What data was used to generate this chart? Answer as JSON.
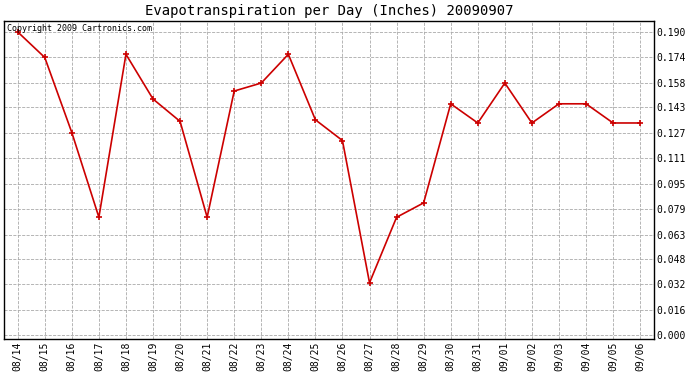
{
  "title": "Evapotranspiration per Day (Inches) 20090907",
  "copyright_text": "Copyright 2009 Cartronics.com",
  "dates": [
    "08/14",
    "08/15",
    "08/16",
    "08/17",
    "08/18",
    "08/19",
    "08/20",
    "08/21",
    "08/22",
    "08/23",
    "08/24",
    "08/25",
    "08/26",
    "08/27",
    "08/28",
    "08/29",
    "08/30",
    "08/31",
    "09/01",
    "09/02",
    "09/03",
    "09/04",
    "09/05",
    "09/06"
  ],
  "values": [
    0.19,
    0.174,
    0.127,
    0.074,
    0.176,
    0.148,
    0.134,
    0.074,
    0.153,
    0.158,
    0.176,
    0.135,
    0.122,
    0.033,
    0.074,
    0.083,
    0.145,
    0.133,
    0.158,
    0.133,
    0.145,
    0.145,
    0.133,
    0.133
  ],
  "line_color": "#cc0000",
  "marker": "+",
  "marker_color": "#cc0000",
  "marker_size": 4,
  "marker_linewidth": 1.2,
  "line_width": 1.2,
  "yticks": [
    0.0,
    0.016,
    0.032,
    0.048,
    0.063,
    0.079,
    0.095,
    0.111,
    0.127,
    0.143,
    0.158,
    0.174,
    0.19
  ],
  "background_color": "#ffffff",
  "grid_color": "#aaaaaa",
  "title_fontsize": 10,
  "copyright_fontsize": 6,
  "tick_fontsize": 7,
  "ylim_min": -0.002,
  "ylim_max": 0.197
}
